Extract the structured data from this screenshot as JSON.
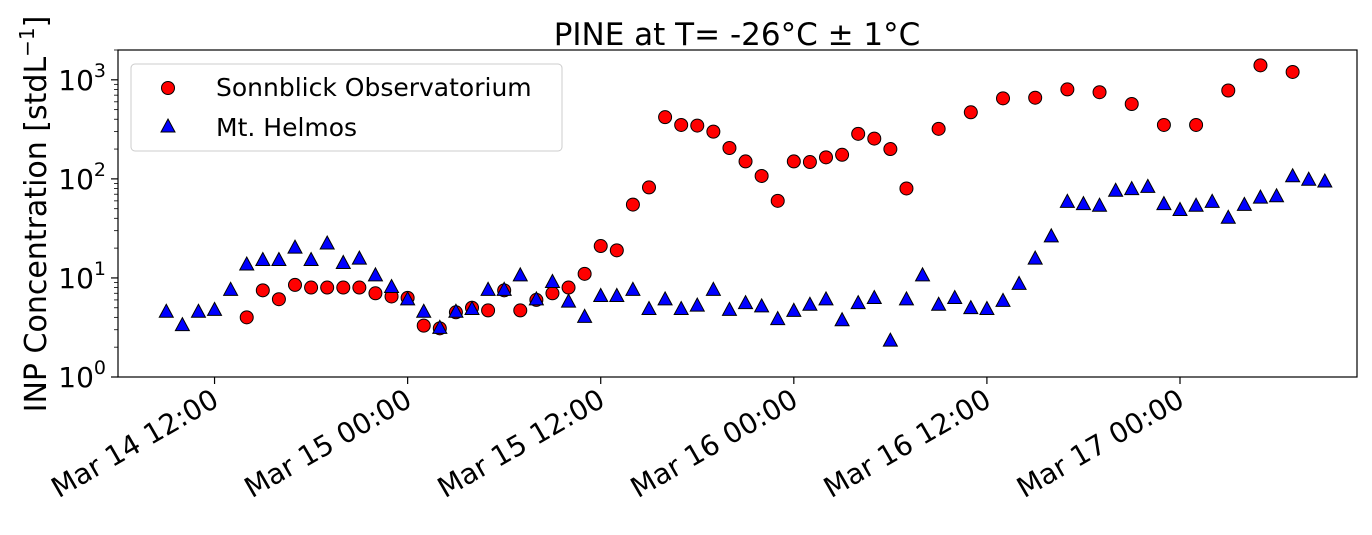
{
  "chart_data": {
    "type": "scatter",
    "title": "PINE at T= -26°C ± 1°C",
    "xlabel": "",
    "ylabel": "INP Concentration [stdL",
    "ylabel_sup": "−1",
    "ylabel_close": "]",
    "yscale": "log",
    "ylim": [
      1,
      2000
    ],
    "x_units": "hours since Mar 14 00:00",
    "xlim": [
      6,
      83
    ],
    "grid": false,
    "legend_position": "top-left",
    "y_ticks": [
      {
        "value": 1,
        "base": "10",
        "exp": "0"
      },
      {
        "value": 10,
        "base": "10",
        "exp": "1"
      },
      {
        "value": 100,
        "base": "10",
        "exp": "2"
      },
      {
        "value": 1000,
        "base": "10",
        "exp": "3"
      }
    ],
    "x_ticks": [
      {
        "value": 12,
        "label": "Mar 14 12:00"
      },
      {
        "value": 24,
        "label": "Mar 15 00:00"
      },
      {
        "value": 36,
        "label": "Mar 15 12:00"
      },
      {
        "value": 48,
        "label": "Mar 16 00:00"
      },
      {
        "value": 60,
        "label": "Mar 16 12:00"
      },
      {
        "value": 72,
        "label": "Mar 17 00:00"
      }
    ],
    "series": [
      {
        "name": "Sonnblick Observatorium",
        "marker": "circle",
        "color": "#ff0000",
        "x": [
          14,
          15,
          16,
          17,
          18,
          19,
          20,
          21,
          22,
          23,
          24,
          25,
          26,
          27,
          28,
          29,
          30,
          31,
          32,
          33,
          34,
          35,
          36,
          37,
          38,
          39,
          40,
          41,
          42,
          43,
          44,
          45,
          46,
          47,
          48,
          49,
          50,
          51,
          52,
          53,
          54,
          55,
          57,
          59,
          61,
          63,
          65,
          67,
          69,
          71,
          73,
          75,
          77,
          79
        ],
        "y": [
          4.0,
          7.5,
          6.1,
          8.5,
          8,
          8,
          8,
          8,
          7,
          6.5,
          6.3,
          3.3,
          3.1,
          4.5,
          5,
          4.7,
          7.5,
          4.7,
          6,
          7,
          8,
          11,
          21,
          19,
          55,
          82,
          420,
          350,
          345,
          300,
          205,
          150,
          107,
          60,
          150,
          148,
          165,
          175,
          285,
          255,
          200,
          80,
          320,
          470,
          650,
          660,
          800,
          750,
          570,
          350,
          350,
          780,
          1400,
          1200
        ]
      },
      {
        "name": "Mt. Helmos",
        "marker": "triangle",
        "color": "#0000ff",
        "x": [
          9,
          10,
          11,
          12,
          13,
          14,
          15,
          16,
          17,
          18,
          19,
          20,
          21,
          22,
          23,
          24,
          25,
          26,
          27,
          28,
          29,
          30,
          31,
          32,
          33,
          34,
          35,
          36,
          37,
          38,
          39,
          40,
          41,
          42,
          43,
          44,
          45,
          46,
          47,
          48,
          49,
          50,
          51,
          52,
          53,
          54,
          55,
          56,
          57,
          58,
          59,
          60,
          61,
          62,
          63,
          64,
          65,
          66,
          67,
          68,
          69,
          70,
          71,
          72,
          73,
          74,
          75,
          76,
          77,
          78,
          79,
          80,
          81
        ],
        "y": [
          4.5,
          3.3,
          4.5,
          4.7,
          7.5,
          13.5,
          15,
          15,
          20,
          15,
          22,
          14,
          15.5,
          10.5,
          8,
          6,
          4.5,
          3.1,
          4.5,
          4.8,
          7.5,
          7.5,
          10.5,
          6,
          9,
          5.7,
          4,
          6.5,
          6.5,
          7.5,
          4.8,
          6,
          4.8,
          5.2,
          7.5,
          4.7,
          5.5,
          5.1,
          3.8,
          4.6,
          5.3,
          6,
          3.7,
          5.5,
          6.2,
          2.3,
          6,
          10.5,
          5.3,
          6.2,
          4.9,
          4.8,
          5.8,
          8.6,
          15.5,
          26,
          58,
          55,
          53,
          75,
          78,
          82,
          55,
          48,
          53,
          58,
          40,
          54,
          64,
          66,
          105,
          97,
          93
        ]
      }
    ]
  }
}
